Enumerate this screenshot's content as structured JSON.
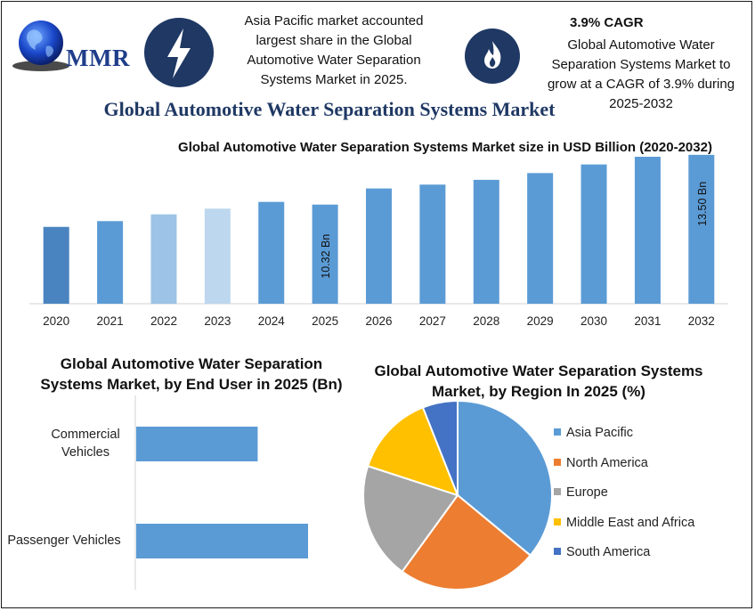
{
  "header": {
    "logo_text": "MMR",
    "fact_left": [
      "Asia Pacific market accounted",
      "largest share in the Global",
      "Automotive Water Separation",
      "Systems Market in 2025."
    ],
    "fact_right_title": "3.9% CAGR",
    "fact_right": [
      "Global Automotive Water",
      "Separation Systems Market to",
      "grow at a CAGR of 3.9% during",
      "2025-2032"
    ],
    "icons": [
      "globe-icon",
      "lightning-icon",
      "flame-icon"
    ]
  },
  "main_title": "Global Automotive Water Separation Systems Market",
  "chart_data": [
    {
      "type": "bar",
      "title": "Global Automotive Water Separation Systems Market size in USD Billion (2020-2032)",
      "categories": [
        "2020",
        "2021",
        "2022",
        "2023",
        "2024",
        "2025",
        "2026",
        "2027",
        "2028",
        "2029",
        "2030",
        "2031",
        "2032"
      ],
      "values": [
        8.0,
        8.6,
        9.3,
        9.9,
        10.6,
        10.32,
        12.0,
        12.4,
        12.9,
        13.6,
        14.5,
        15.3,
        13.5
      ],
      "data_labels": {
        "2025": "10.32 Bn",
        "2032": "13.50 Bn"
      },
      "colors": [
        "#4a84c0",
        "#5b9bd5",
        "#9dc3e6",
        "#bdd7ee",
        "#5b9bd5",
        "#5b9bd5",
        "#5b9bd5",
        "#5b9bd5",
        "#5b9bd5",
        "#5b9bd5",
        "#5b9bd5",
        "#5b9bd5",
        "#5b9bd5"
      ],
      "xlabel": "",
      "ylabel": "",
      "grid": false
    },
    {
      "type": "bar",
      "orientation": "horizontal",
      "title": "Global Automotive Water Separation Systems Market, by End User in 2025 (Bn)",
      "categories": [
        "Commercial Vehicles",
        "Passenger Vehicles"
      ],
      "category_lines": [
        [
          "Commercial",
          "Vehicles"
        ],
        [
          "Passenger Vehicles"
        ]
      ],
      "values": [
        4.1,
        5.8
      ],
      "color": "#5b9bd5"
    },
    {
      "type": "pie",
      "title": "Global Automotive Water Separation Systems Market, by Region In 2025 (%)",
      "labels": [
        "Asia Pacific",
        "North America",
        "Europe",
        "Middle East and Africa",
        "South America"
      ],
      "values": [
        36,
        24,
        20,
        14,
        6
      ],
      "colors": [
        "#5b9bd5",
        "#ed7d31",
        "#a5a5a5",
        "#ffc000",
        "#4472c4"
      ],
      "legend": "right"
    }
  ]
}
